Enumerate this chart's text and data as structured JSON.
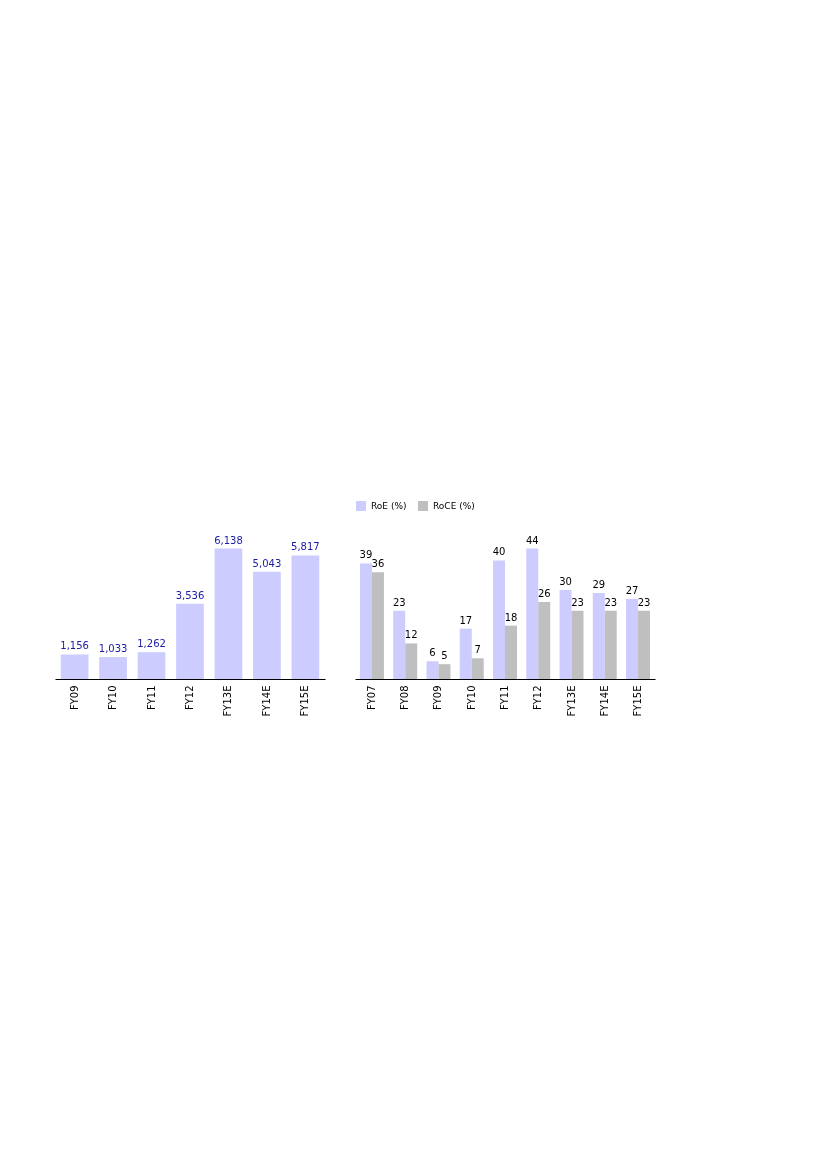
{
  "chart_data": [
    {
      "type": "bar",
      "categories": [
        "FY09",
        "FY10",
        "FY11",
        "FY12",
        "FY13E",
        "FY14E",
        "FY15E"
      ],
      "series": [
        {
          "color": "#ccccff",
          "values": [
            1156,
            1033,
            1262,
            3536,
            6138,
            5043,
            5817
          ],
          "value_labels": [
            "1,156",
            "1,033",
            "1,262",
            "3,536",
            "6,138",
            "5,043",
            "5,817"
          ]
        }
      ],
      "legend": false,
      "grid": false,
      "tick_labels": "x"
    },
    {
      "type": "bar",
      "categories": [
        "FY07",
        "FY08",
        "FY09",
        "FY10",
        "FY11",
        "FY12",
        "FY13E",
        "FY14E",
        "FY15E"
      ],
      "series": [
        {
          "name": "RoE (%)",
          "color": "#ccccff",
          "values": [
            39,
            23,
            6,
            17,
            40,
            44,
            30,
            29,
            27
          ]
        },
        {
          "name": "RoCE (%)",
          "color": "#bfbfbf",
          "values": [
            36,
            12,
            5,
            7,
            18,
            26,
            23,
            23,
            23
          ]
        }
      ],
      "data_labels": true,
      "legend": "top",
      "grid": false,
      "tick_labels": "x"
    }
  ]
}
